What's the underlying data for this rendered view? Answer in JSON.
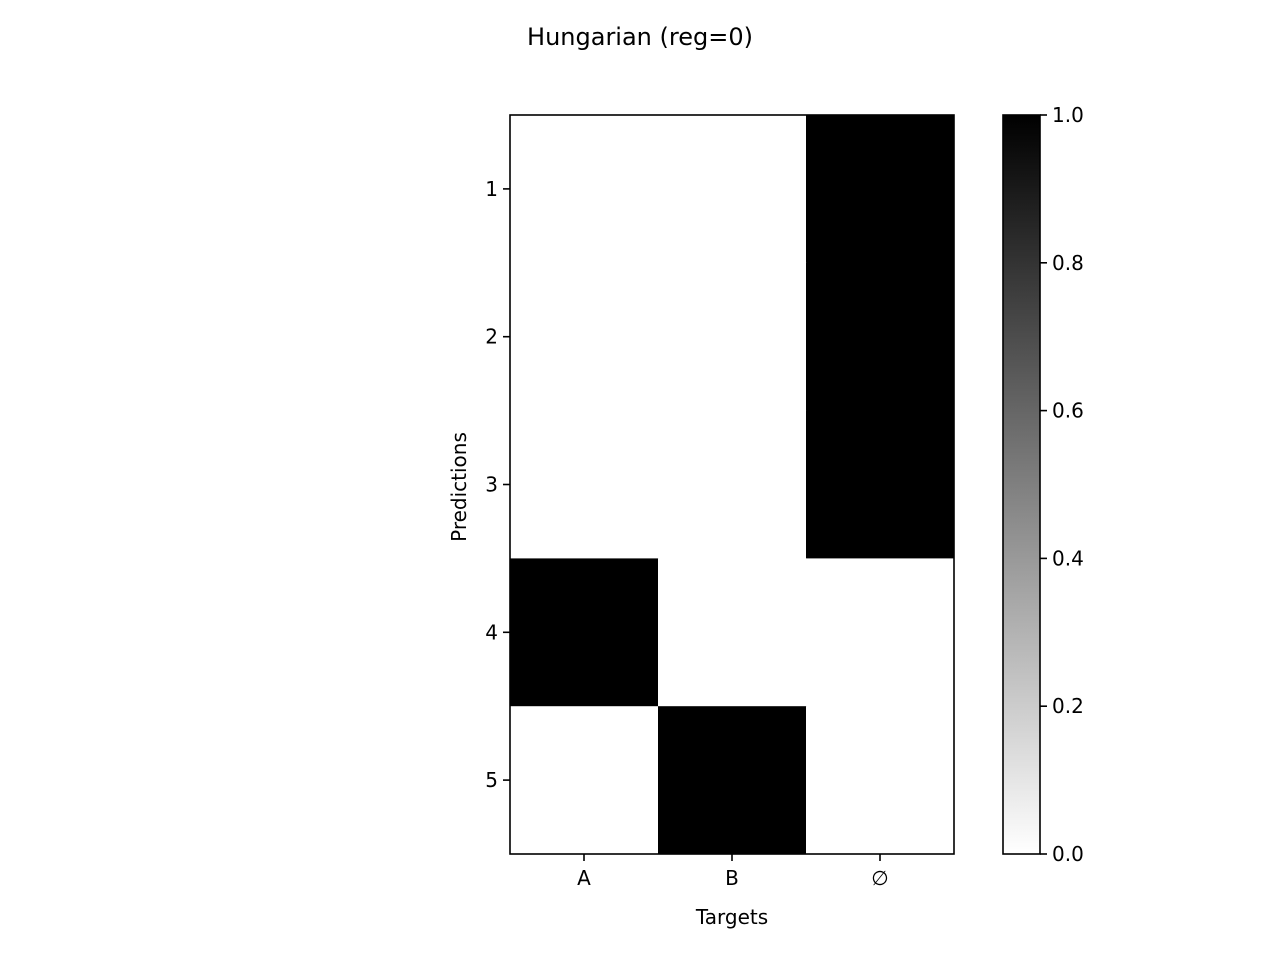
{
  "chart_data": {
    "type": "heatmap",
    "title": "Hungarian (reg=0)",
    "xlabel": "Targets",
    "ylabel": "Predictions",
    "x_categories": [
      "A",
      "B",
      "∅"
    ],
    "x_category_colors": [
      "#ff0000",
      "#33ff00",
      "#000000"
    ],
    "y_categories": [
      "1",
      "2",
      "3",
      "4",
      "5"
    ],
    "values": [
      [
        0,
        0,
        1
      ],
      [
        0,
        0,
        1
      ],
      [
        0,
        0,
        1
      ],
      [
        1,
        0,
        0
      ],
      [
        0,
        1,
        0
      ]
    ],
    "colormap": "gray_r",
    "colorbar": {
      "range": [
        0.0,
        1.0
      ],
      "ticks": [
        "0.0",
        "0.2",
        "0.4",
        "0.6",
        "0.8",
        "1.0"
      ]
    },
    "grid": false
  }
}
